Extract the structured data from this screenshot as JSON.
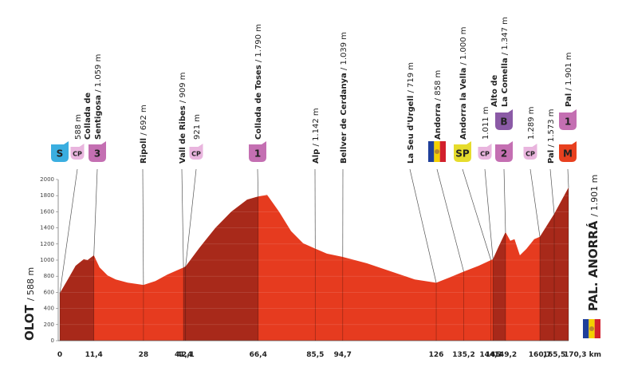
{
  "chart_data": {
    "type": "area",
    "color": "#e63b1f",
    "shade_color": "#a8291a",
    "grid": true,
    "xlim": [
      0,
      170.3
    ],
    "ylim": [
      0,
      2000
    ],
    "yticks": [
      0,
      200,
      400,
      600,
      800,
      1000,
      1200,
      1400,
      1600,
      1800,
      2000
    ],
    "xticks": [
      0,
      {
        "value": 11.4,
        "label": "11,4"
      },
      28,
      {
        "value": 41.4,
        "label": "41,4"
      },
      {
        "value": 42.1,
        "label": "42,1"
      },
      {
        "value": 66.4,
        "label": "66,4"
      },
      {
        "value": 85.5,
        "label": "85,5"
      },
      {
        "value": 94.7,
        "label": "94,7"
      },
      126,
      {
        "value": 135.2,
        "label": "135,2"
      },
      {
        "value": 144.3,
        "label": "144,3"
      },
      145,
      {
        "value": 149.2,
        "label": "149,2"
      },
      {
        "value": 160.7,
        "label": "160,7"
      },
      {
        "value": 165.5,
        "label": "165,5"
      },
      {
        "value": 170.3,
        "label": "170,3 km"
      }
    ],
    "x": [
      0,
      2.7,
      5.3,
      8.0,
      9.3,
      11.4,
      13.3,
      16.0,
      18.7,
      22.7,
      28,
      32.0,
      36.0,
      41.4,
      42.1,
      46.7,
      52.1,
      57.4,
      62.7,
      66.4,
      69.4,
      73.4,
      77.4,
      81.4,
      85.5,
      89.4,
      94.7,
      102.8,
      110.8,
      118.8,
      126,
      130.8,
      135.2,
      140.2,
      144.3,
      145,
      146.8,
      149.2,
      150.8,
      152.2,
      154.0,
      156.2,
      158.8,
      160.7,
      165.5,
      170.3
    ],
    "values": [
      588,
      760,
      930,
      1010,
      1000,
      1059,
      910,
      810,
      760,
      720,
      692,
      740,
      820,
      909,
      921,
      1150,
      1400,
      1600,
      1750,
      1790,
      1810,
      1600,
      1360,
      1210,
      1142,
      1080,
      1039,
      960,
      860,
      760,
      719,
      790,
      858,
      930,
      1000,
      1011,
      1160,
      1347,
      1240,
      1260,
      1060,
      1140,
      1260,
      1289,
      1573,
      1901
    ],
    "start": {
      "name": "OLOT",
      "elevation": "/ 588 m",
      "badge": {
        "text": "S",
        "color": "#3aaee0"
      }
    },
    "finish": {
      "name": "PAL. ANORRÁ",
      "elevation": "/ 1.901 m",
      "flag": [
        "#1f3f9a",
        "#f3d000",
        "#d2202c"
      ]
    },
    "waypoints": [
      {
        "elevation": "588 m",
        "badges": [
          {
            "text": "CP",
            "color": "#e9b5de"
          }
        ]
      },
      {
        "name": [
          "Collada de",
          "Sentigosa"
        ],
        "elevation": "/ 1.059 m",
        "badges": [
          {
            "text": "3",
            "color": "#c46fb2"
          }
        ]
      },
      {
        "name": [
          "Ripoll"
        ],
        "elevation": "/ 692 m"
      },
      {
        "name": [
          "Vall de Ribes"
        ],
        "elevation": "/ 909 m"
      },
      {
        "elevation": "921 m",
        "badges": [
          {
            "text": "CP",
            "color": "#e9b5de"
          }
        ]
      },
      {
        "name": [
          "Collada de Toses"
        ],
        "elevation": "/ 1.790 m",
        "badges": [
          {
            "text": "1",
            "color": "#c46fb2"
          }
        ]
      },
      {
        "name": [
          "Alp"
        ],
        "elevation": "/ 1.142 m"
      },
      {
        "name": [
          "Bellver de Cerdanya"
        ],
        "elevation": "/ 1.039 m"
      },
      {
        "name": [
          "La Seu d'Urgell"
        ],
        "elevation": "/ 719 m"
      },
      {
        "name": [
          "Andorra"
        ],
        "elevation": "/ 858 m",
        "badges": [
          {
            "stripes": [
              "#1f3f9a",
              "#f3d000",
              "#d2202c"
            ]
          }
        ]
      },
      {
        "name": [
          "Andorra la Vella"
        ],
        "elevation": "/ 1.000 m",
        "badges": [
          {
            "text": "SP",
            "color": "#e6dc2c"
          }
        ]
      },
      {
        "elevation": "1.011 m",
        "badges": [
          {
            "text": "CP",
            "color": "#e9b5de"
          }
        ]
      },
      {
        "name": [
          "Alto de",
          "La Comella"
        ],
        "elevation": "/ 1.347 m",
        "badges": [
          {
            "text": "B",
            "color": "#8b5aa6"
          },
          {
            "text": "2",
            "color": "#c46fb2"
          }
        ]
      },
      {
        "elevation": "1.289 m",
        "badges": [
          {
            "text": "CP",
            "color": "#e9b5de"
          }
        ]
      },
      {
        "name": [
          "Pal"
        ],
        "elevation": "/ 1.573 m"
      },
      {
        "name": [
          "Pal"
        ],
        "elevation": "/ 1.901 m",
        "badges": [
          {
            "text": "1",
            "color": "#c46fb2"
          },
          {
            "text": "M",
            "color": "#e8401f"
          }
        ]
      }
    ]
  }
}
